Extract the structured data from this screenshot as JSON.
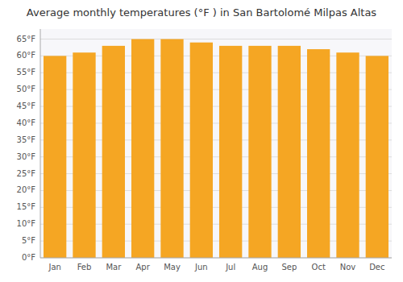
{
  "chart_data": {
    "type": "bar",
    "title": "Average monthly temperatures (°F ) in San Bartolomé Milpas Altas",
    "categories": [
      "Jan",
      "Feb",
      "Mar",
      "Apr",
      "May",
      "Jun",
      "Jul",
      "Aug",
      "Sep",
      "Oct",
      "Nov",
      "Dec"
    ],
    "values": [
      60,
      61,
      63,
      65,
      65,
      64,
      63,
      63,
      63,
      62,
      61,
      60
    ],
    "color": "#F5A623",
    "ylim": [
      0,
      68
    ],
    "yticks": [
      {
        "value": 0,
        "label": "0°F"
      },
      {
        "value": 5,
        "label": "5°F"
      },
      {
        "value": 10,
        "label": "10°F"
      },
      {
        "value": 15,
        "label": "15°F"
      },
      {
        "value": 20,
        "label": "20°F"
      },
      {
        "value": 25,
        "label": "25°F"
      },
      {
        "value": 30,
        "label": "30°F"
      },
      {
        "value": 35,
        "label": "35°F"
      },
      {
        "value": 40,
        "label": "40°F"
      },
      {
        "value": 45,
        "label": "45°F"
      },
      {
        "value": 50,
        "label": "50°F"
      },
      {
        "value": 55,
        "label": "55°F"
      },
      {
        "value": 60,
        "label": "60°F"
      },
      {
        "value": 65,
        "label": "65°F"
      }
    ],
    "grid": true
  }
}
